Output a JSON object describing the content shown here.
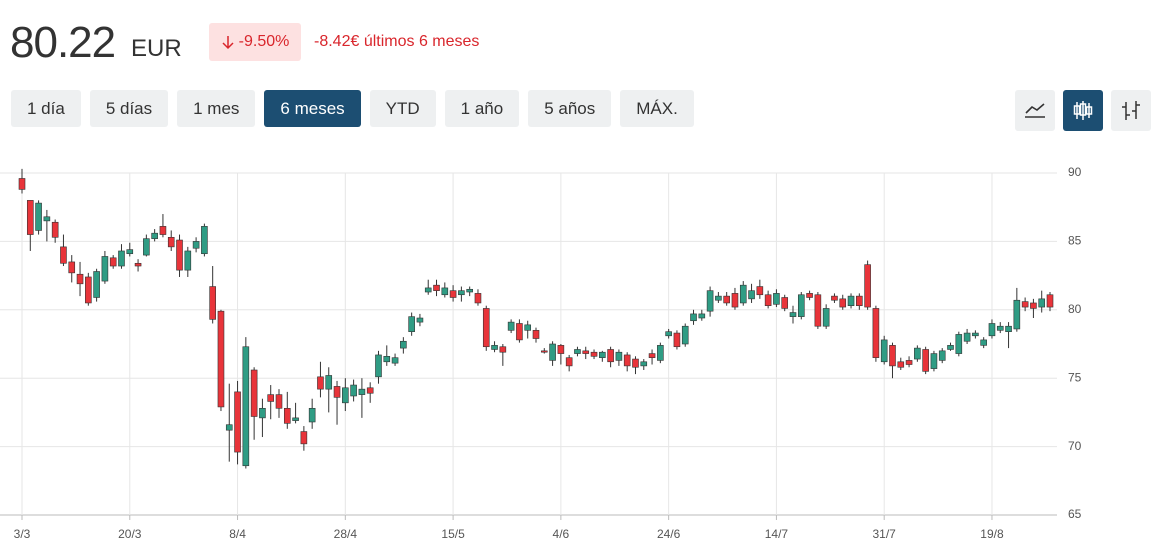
{
  "header": {
    "price": 80.22,
    "currency": "EUR",
    "change_pct": "-9.50%",
    "change_text": "-8.42€ últimos 6 meses"
  },
  "ranges": {
    "buttons": [
      "1 día",
      "5 días",
      "1 mes",
      "6 meses",
      "YTD",
      "1 año",
      "5 años",
      "MÁX."
    ],
    "active": 3
  },
  "chart_data": {
    "type": "candlestick",
    "categories": [
      "3/3",
      null,
      null,
      null,
      null,
      null,
      null,
      null,
      null,
      null,
      null,
      null,
      null,
      "20/3",
      null,
      null,
      null,
      null,
      null,
      null,
      null,
      null,
      null,
      null,
      null,
      null,
      "8/4",
      null,
      null,
      null,
      null,
      null,
      null,
      null,
      null,
      null,
      null,
      null,
      null,
      "28/4",
      null,
      null,
      null,
      null,
      null,
      null,
      null,
      null,
      null,
      null,
      null,
      null,
      "15/5",
      null,
      null,
      null,
      null,
      null,
      null,
      null,
      null,
      null,
      null,
      null,
      null,
      "4/6",
      null,
      null,
      null,
      null,
      null,
      null,
      null,
      null,
      null,
      null,
      null,
      null,
      "24/6",
      null,
      null,
      null,
      null,
      null,
      null,
      null,
      null,
      null,
      null,
      null,
      null,
      "14/7",
      null,
      null,
      null,
      null,
      null,
      null,
      null,
      null,
      null,
      null,
      null,
      null,
      "31/7",
      null,
      null,
      null,
      null,
      null,
      null,
      null,
      null,
      null,
      null,
      null,
      null,
      "19/8",
      null,
      null,
      null,
      null,
      null,
      null,
      null
    ],
    "open": [
      89.6,
      88,
      85.8,
      86.5,
      86.4,
      84.6,
      83.5,
      82.6,
      82.4,
      80.9,
      82.1,
      83.8,
      83.2,
      84.1,
      83.4,
      84,
      85.2,
      86.1,
      85.3,
      85.1,
      82.9,
      84.5,
      84.1,
      81.7,
      79.9,
      71.2,
      74,
      68.6,
      75.6,
      72.1,
      73.8,
      73.8,
      72.8,
      71.9,
      71.1,
      71.8,
      75.1,
      74.2,
      74.4,
      73.2,
      73.7,
      73.8,
      74.3,
      75.1,
      76.2,
      76.1,
      77.2,
      78.4,
      79.1,
      81.3,
      81.8,
      81.1,
      81.4,
      81.1,
      81.3,
      81.2,
      80.1,
      77.1,
      77.3,
      78.5,
      79,
      78.5,
      78.5,
      77,
      76.3,
      77.4,
      76.5,
      76.8,
      77,
      76.9,
      76.5,
      77.1,
      76.3,
      76.7,
      76.4,
      75.9,
      76.8,
      76.3,
      78.1,
      78.3,
      77.5,
      79.2,
      79.4,
      79.9,
      80.7,
      81,
      81.2,
      80.5,
      80.8,
      81.7,
      81.1,
      80.4,
      80.9,
      79.5,
      79.5,
      81.2,
      81.1,
      78.8,
      81,
      80.8,
      80.3,
      81,
      83.3,
      80.1,
      76.2,
      77.4,
      76.2,
      76.3,
      76.4,
      77.1,
      75.7,
      76.3,
      77.1,
      76.8,
      77.7,
      78.1,
      77.4,
      78.1,
      78.5,
      78.4,
      78.6,
      80.6,
      80.5,
      80.2,
      81.1
    ],
    "high": [
      90.3,
      88,
      88,
      87.3,
      86.6,
      85.5,
      84,
      83.5,
      82.7,
      83,
      84.3,
      84,
      84.8,
      84.9,
      83.7,
      85.5,
      85.9,
      87,
      85.8,
      85.5,
      84.6,
      85.3,
      86.3,
      83.2,
      80,
      74.6,
      74.8,
      78,
      75.8,
      73.5,
      74.5,
      74.2,
      74,
      73.2,
      71.5,
      73.5,
      76.2,
      75.8,
      74.8,
      75,
      74.9,
      75,
      74.7,
      77,
      77.4,
      76.8,
      78,
      79.8,
      79.7,
      82.2,
      82.2,
      82,
      81.8,
      81.7,
      81.7,
      81.5,
      80.3,
      77.7,
      77.5,
      79.3,
      79.3,
      79.2,
      78.7,
      77.2,
      77.7,
      77.5,
      76.7,
      77.3,
      77.3,
      77.1,
      77,
      77.3,
      77.1,
      76.9,
      76.6,
      76.4,
      77.1,
      77.6,
      78.6,
      78.5,
      79,
      80,
      80,
      81.7,
      81.3,
      81.3,
      81.6,
      82.1,
      81.9,
      82.2,
      81.4,
      81.5,
      81.1,
      80.3,
      81.3,
      81.4,
      81.3,
      80.4,
      81.2,
      81.1,
      81.2,
      81.2,
      83.6,
      80.3,
      78.1,
      77.6,
      76.5,
      76.6,
      77.4,
      77.3,
      77,
      77.2,
      77.6,
      78.4,
      78.6,
      78.5,
      78,
      79.3,
      79.1,
      79.1,
      81.6,
      80.9,
      80.8,
      81.4,
      81.3
    ],
    "low": [
      88.5,
      84.3,
      85.5,
      85,
      84.9,
      83.2,
      82,
      81,
      80.3,
      80.6,
      81.9,
      83,
      83,
      83.9,
      82.8,
      83.9,
      85,
      85.3,
      84.3,
      82.4,
      82.4,
      84.2,
      83.9,
      79,
      72.6,
      68.9,
      68.7,
      68.4,
      70.5,
      70.7,
      72,
      72.1,
      71.3,
      71.7,
      69.7,
      71.3,
      73.6,
      72.5,
      71.6,
      72.6,
      73.3,
      72.1,
      73.2,
      74.6,
      75.9,
      75.9,
      76.8,
      78.1,
      78.8,
      81.1,
      81,
      80.9,
      80.6,
      80.6,
      81,
      80.3,
      77,
      76.9,
      75.9,
      78.3,
      77.6,
      77.9,
      77.6,
      76.8,
      75.9,
      76,
      75.5,
      76.6,
      76.4,
      76.4,
      76.2,
      75.8,
      75.9,
      75.5,
      75.3,
      75.6,
      76,
      76.1,
      77.9,
      77.1,
      77.3,
      78.9,
      79.2,
      79.5,
      80.5,
      80.3,
      80,
      80.3,
      80.5,
      80.8,
      80.1,
      80.2,
      79.9,
      79,
      79.3,
      80.7,
      78.6,
      78.6,
      80.5,
      80,
      80.1,
      80,
      80,
      76.2,
      76,
      75,
      75.6,
      75.8,
      76.2,
      75.3,
      75.5,
      76.1,
      77,
      76.6,
      77.5,
      77.9,
      77.2,
      77.9,
      78.3,
      77.2,
      78.4,
      79.9,
      79.4,
      79.8,
      79.9
    ],
    "close": [
      88.8,
      85.5,
      87.8,
      86.8,
      85.3,
      83.4,
      82.7,
      81.9,
      80.5,
      82.8,
      83.9,
      83.2,
      84.3,
      84.4,
      83.2,
      85.2,
      85.6,
      85.5,
      84.6,
      82.9,
      84.3,
      85,
      86.1,
      79.3,
      72.9,
      71.6,
      69.6,
      77.3,
      72.2,
      72.8,
      73.3,
      72.8,
      71.7,
      72.1,
      70.2,
      72.8,
      74.2,
      75.2,
      73.6,
      74.3,
      74.5,
      74.2,
      73.9,
      76.7,
      76.6,
      76.5,
      77.7,
      79.5,
      79.4,
      81.6,
      81.4,
      81.6,
      80.9,
      81.4,
      81.5,
      80.5,
      77.3,
      77.4,
      76.9,
      79.1,
      77.8,
      78.9,
      77.9,
      76.9,
      77.5,
      76.8,
      75.9,
      77.1,
      76.8,
      76.6,
      76.9,
      76.2,
      76.9,
      75.9,
      75.8,
      76.2,
      76.5,
      77.4,
      78.4,
      77.3,
      78.8,
      79.7,
      79.7,
      81.4,
      81,
      80.5,
      80.2,
      81.8,
      81.4,
      81.1,
      80.3,
      81.2,
      80.1,
      79.8,
      81.1,
      80.9,
      78.8,
      80.1,
      80.7,
      80.2,
      81,
      80.3,
      80.2,
      76.5,
      77.8,
      75.9,
      75.8,
      76,
      77.2,
      75.5,
      76.8,
      77,
      77.4,
      78.2,
      78.3,
      78.3,
      77.8,
      79,
      78.8,
      78.8,
      80.7,
      80.2,
      80.1,
      80.8,
      80.2
    ],
    "up_color": "#2f9c84",
    "down_color": "#e8343a",
    "ylim": [
      65,
      90
    ],
    "yticks": [
      65,
      70,
      75,
      80,
      85,
      90
    ],
    "grid": true
  }
}
